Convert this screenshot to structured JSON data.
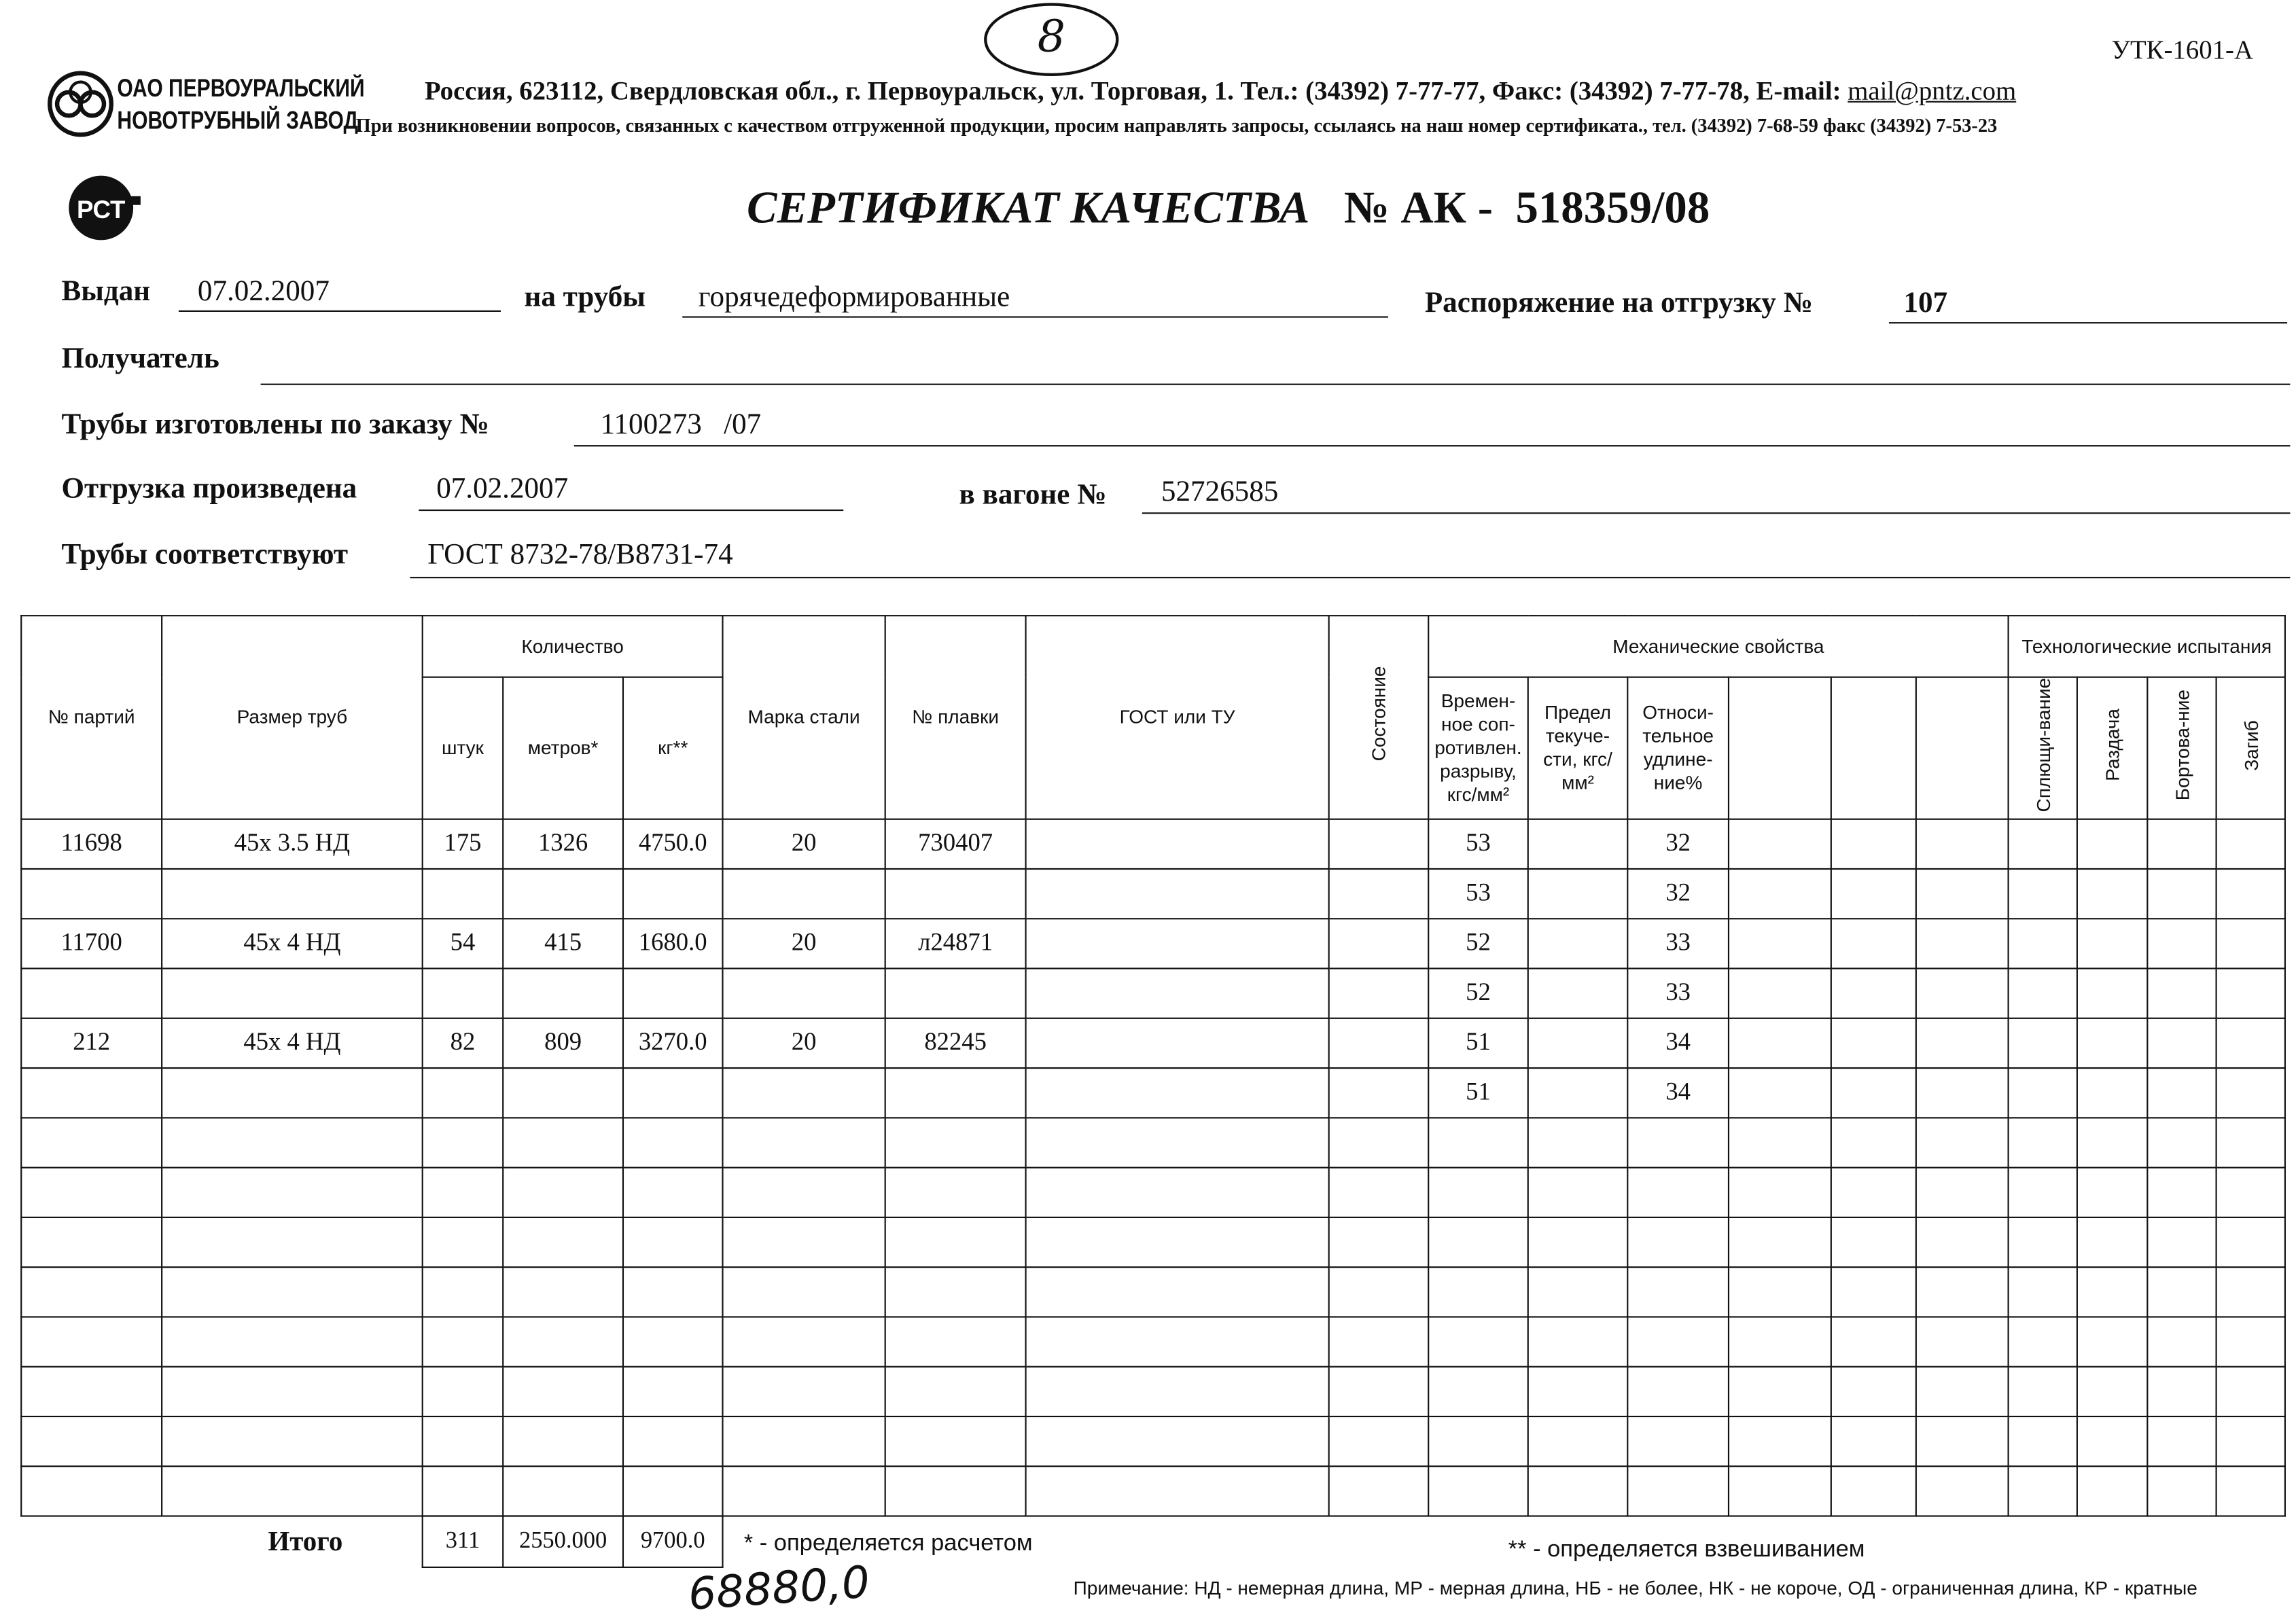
{
  "form_code": "УТК-1601-А",
  "handwritten_page_number": "8",
  "handwritten_bottom": "68880,0",
  "company": {
    "name_line1": "ОАО ПЕРВОУРАЛЬСКИЙ",
    "name_line2": "НОВОТРУБНЫЙ ЗАВОД"
  },
  "address_line": "Россия, 623112, Свердловская обл., г. Первоуральск, ул. Торговая, 1. Тел.: (34392) 7-77-77, Факс: (34392) 7-77-78,",
  "email_label": "E-mail:",
  "email": "mail@pntz.com",
  "contact_note": "При возникновении вопросов, связанных с качеством отгруженной продукции, просим направлять запросы, ссылаясь на наш номер сертификата., тел. (34392) 7-68-59 факс (34392) 7-53-23",
  "cert_logo_text": "РСТ",
  "title": "СЕРТИФИКАТ КАЧЕСТВА",
  "number_label": "№  АК -",
  "number": "518359/08",
  "fields": {
    "issued_label": "Выдан",
    "issued": "07.02.2007",
    "pipes_label": "на трубы",
    "pipes": "горячедеформированные",
    "order_label": "Распоряжение на отгрузку №",
    "order": "107",
    "recipient_label": "Получатель",
    "recipient": "",
    "made_label": "Трубы изготовлены по заказу №",
    "made": "1100273   /07",
    "shipped_label": "Отгрузка произведена",
    "shipped": "07.02.2007",
    "wagon_label": "в вагоне №",
    "wagon": "52726585",
    "conform_label": "Трубы соответствуют",
    "conform": "ГОСТ 8732-78/В8731-74"
  },
  "table": {
    "headers": {
      "batch": "№ партий",
      "size": "Размер труб",
      "quantity": "Количество",
      "pcs": "штук",
      "meters": "метров*",
      "kg": "кг**",
      "grade": "Марка стали",
      "heat": "№ плавки",
      "gost": "ГОСТ или ТУ",
      "state": "Состояние",
      "mech": "Механические свойства",
      "tensile": "Времен-ное соп-ротивлен. разрыву, кгс/мм²",
      "yield": "Предел текуче-сти, кгс/мм²",
      "elong": "Относи-тельное удлине-ние%",
      "tech": "Технологические испытания",
      "flat": "Сплющи-вание",
      "expand": "Раздача",
      "flange": "Бортова-ние",
      "bend": "Загиб"
    },
    "rows": [
      {
        "batch": "11698",
        "size": "45x 3.5 НД",
        "pcs": "175",
        "meters": "1326",
        "kg": "4750.0",
        "grade": "20",
        "heat": "730407",
        "tensile": "53",
        "elong": "32"
      },
      {
        "tensile": "53",
        "elong": "32"
      },
      {
        "batch": "11700",
        "size": "45x 4 НД",
        "pcs": "54",
        "meters": "415",
        "kg": "1680.0",
        "grade": "20",
        "heat": "л24871",
        "tensile": "52",
        "elong": "33"
      },
      {
        "tensile": "52",
        "elong": "33"
      },
      {
        "batch": "212",
        "size": "45x 4 НД",
        "pcs": "82",
        "meters": "809",
        "kg": "3270.0",
        "grade": "20",
        "heat": "82245",
        "tensile": "51",
        "elong": "34"
      },
      {
        "tensile": "51",
        "elong": "34"
      },
      {},
      {},
      {},
      {},
      {},
      {},
      {},
      {}
    ],
    "total_label": "Итого",
    "total": {
      "pcs": "311",
      "meters": "2550.000",
      "kg": "9700.0"
    }
  },
  "footnote1": "* - определяется расчетом",
  "footnote2": "** - определяется взвешиванием",
  "note": "Примечание: НД - немерная длина, МР - мерная длина, НБ - не более, НК - не короче, ОД - ограниченная длина, КР - кратные"
}
